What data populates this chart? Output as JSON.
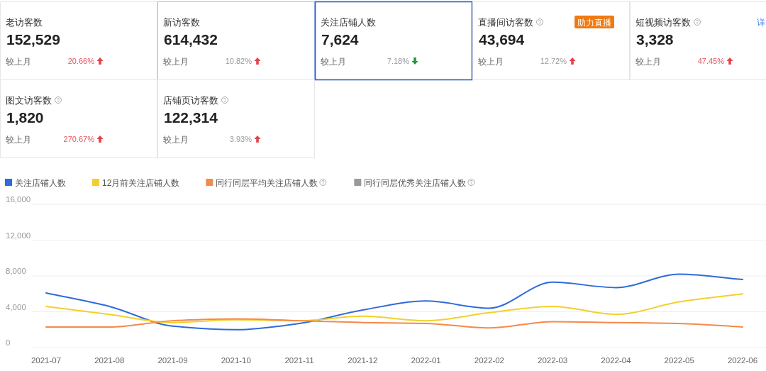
{
  "chart_data": [
    {
      "type": "other",
      "categories": [
        "老访客数"
      ],
      "series": [
        {
          "values": [
            152529
          ],
          "value_labels": [
            "152,529"
          ]
        },
        {
          "values": [
            20.66
          ],
          "value_labels": [
            "20.66%"
          ],
          "colors": [
            "#e5545c"
          ]
        }
      ],
      "annotations": [
        "较上月"
      ]
    },
    {
      "type": "other",
      "categories": [
        "新访客数"
      ],
      "series": [
        {
          "values": [
            614432
          ],
          "value_labels": [
            "614,432"
          ]
        },
        {
          "values": [
            10.82
          ],
          "value_labels": [
            "10.82%"
          ],
          "colors": [
            "#999999"
          ]
        }
      ],
      "annotations": [
        "较上月"
      ]
    },
    {
      "type": "other",
      "categories": [
        "关注店铺人数"
      ],
      "series": [
        {
          "values": [
            7624
          ],
          "value_labels": [
            "7,624"
          ]
        },
        {
          "values": [
            null
          ]
        },
        {
          "values": [
            7.18
          ],
          "value_labels": [
            "7.18%"
          ],
          "colors": [
            "#999999"
          ]
        }
      ],
      "annotations": [
        "较上月"
      ]
    },
    {
      "type": "other",
      "categories": [
        "直播间访客数"
      ],
      "series": [
        {
          "values": [
            43694
          ],
          "value_labels": [
            "43,694"
          ]
        },
        {
          "values": [
            12.72
          ],
          "value_labels": [
            "12.72%"
          ],
          "colors": [
            "#999999"
          ]
        }
      ],
      "annotations": [
        "较上月",
        "助力直播"
      ]
    },
    {
      "type": "other",
      "categories": [
        "短视频访客数"
      ],
      "series": [
        {
          "values": [
            3328
          ],
          "value_labels": [
            "3,328"
          ]
        },
        {
          "values": [
            47.45
          ],
          "value_labels": [
            "47.45%"
          ],
          "colors": [
            "#e5545c"
          ]
        }
      ],
      "annotations": [
        "较上月",
        "详"
      ]
    },
    {
      "type": "other",
      "categories": [
        "图文访客数"
      ],
      "series": [
        {
          "values": [
            1820
          ],
          "value_labels": [
            "1,820"
          ]
        },
        {
          "values": [
            270.67
          ],
          "value_labels": [
            "270.67%"
          ],
          "colors": [
            "#e5545c"
          ]
        }
      ],
      "annotations": [
        "较上月"
      ]
    },
    {
      "type": "other",
      "categories": [
        "店铺页访客数"
      ],
      "series": [
        {
          "values": [
            122314
          ],
          "value_labels": [
            "122,314"
          ]
        },
        {
          "values": [
            3.93
          ],
          "value_labels": [
            "3.93%"
          ],
          "colors": [
            "#999999"
          ]
        }
      ],
      "annotations": [
        "较上月"
      ]
    },
    {
      "type": "line",
      "categories": [
        "2021-07",
        "2021-08",
        "2021-09",
        "2021-10",
        "2021-11",
        "2021-12",
        "2022-01",
        "2022-02",
        "2022-03",
        "2022-04",
        "2022-05",
        "2022-06"
      ],
      "series": [
        {
          "name": "关注店铺人数",
          "color": "#2f6bd9",
          "values": [
            6100,
            4600,
            2400,
            2000,
            2700,
            4200,
            5200,
            4400,
            7300,
            6700,
            8200,
            7600
          ]
        },
        {
          "name": "12月前关注店铺人数",
          "color": "#f2d02c",
          "values": [
            4600,
            3700,
            2800,
            3100,
            3000,
            3500,
            3000,
            3900,
            4600,
            3700,
            5100,
            6000
          ]
        },
        {
          "name": "同行同层平均关注店铺人数",
          "color": "#f5894a",
          "values": [
            2300,
            2300,
            3000,
            3200,
            3000,
            2800,
            2700,
            2200,
            2900,
            2800,
            2700,
            2300
          ]
        },
        {
          "name": "同行同层优秀关注店铺人数",
          "color": "#9a9a9a",
          "values": [
            null,
            null,
            null,
            null,
            null,
            null,
            null,
            null,
            null,
            null,
            null,
            null
          ]
        }
      ],
      "ylim": [
        0,
        16000
      ],
      "yticks": [
        0,
        {
          "value": 4000,
          "label": "4,000"
        },
        {
          "value": 8000,
          "label": "8,000"
        },
        {
          "value": 12000,
          "label": "12,000"
        },
        {
          "value": 16000,
          "label": "16,000"
        }
      ],
      "grid": "y",
      "legend": "top left"
    }
  ]
}
